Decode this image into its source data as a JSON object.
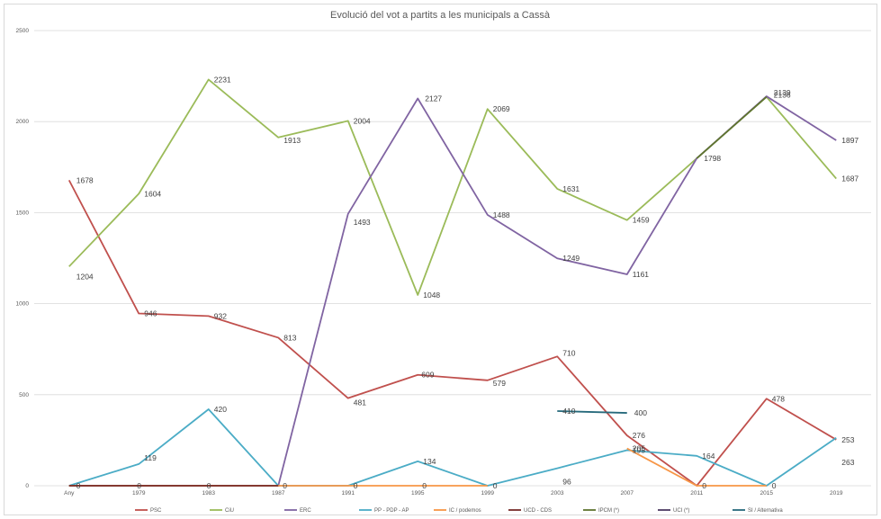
{
  "chart_data": {
    "type": "line",
    "title": "Evolució del vot a partits a les municipals a Cassà",
    "xlabel": "",
    "ylabel": "",
    "categories": [
      "Any",
      "1979",
      "1983",
      "1987",
      "1991",
      "1995",
      "1999",
      "2003",
      "2007",
      "2011",
      "2015",
      "2019"
    ],
    "ylim": [
      0,
      2500
    ],
    "yticks": [
      "0",
      "500",
      "1000",
      "1500",
      "2000",
      "2500"
    ],
    "grid": true,
    "legend_position": "bottom",
    "series": [
      {
        "name": "PSC",
        "color": "#c0504d",
        "values": [
          1678,
          946,
          932,
          813,
          481,
          609,
          579,
          710,
          276,
          0,
          478,
          253
        ]
      },
      {
        "name": "CiU",
        "color": "#9bbb59",
        "values": [
          1204,
          1604,
          2231,
          1913,
          2004,
          1048,
          2069,
          1631,
          1459,
          1798,
          2136,
          1687
        ]
      },
      {
        "name": "ERC",
        "color": "#8064a2",
        "values": [
          0,
          0,
          0,
          0,
          1493,
          2127,
          1488,
          1249,
          1161,
          1798,
          2139,
          1897
        ]
      },
      {
        "name": "PP - PDP - AP",
        "color": "#4bacc6",
        "values": [
          0,
          119,
          420,
          0,
          0,
          134,
          0,
          96,
          195,
          164,
          0,
          263
        ]
      },
      {
        "name": "IC / podemos",
        "color": "#f79646",
        "values": [
          0,
          0,
          0,
          0,
          0,
          0,
          0,
          null,
          205,
          0,
          0,
          null
        ]
      },
      {
        "name": "UCD - CDS",
        "color": "#772c2a",
        "values": [
          0,
          0,
          0,
          0,
          null,
          null,
          null,
          null,
          null,
          null,
          null,
          null
        ]
      },
      {
        "name": "IPCM (*)",
        "color": "#5f7530",
        "values": [
          null,
          null,
          null,
          null,
          null,
          null,
          null,
          null,
          null,
          1798,
          2136,
          null
        ]
      },
      {
        "name": "UCI (*)",
        "color": "#4d3b62",
        "values": [
          null,
          null,
          null,
          null,
          null,
          null,
          null,
          null,
          null,
          null,
          null,
          null
        ]
      },
      {
        "name": "SI / Alternativa",
        "color": "#276a7c",
        "values": [
          null,
          null,
          null,
          null,
          null,
          null,
          null,
          410,
          400,
          null,
          null,
          null
        ]
      }
    ],
    "data_labels": [
      {
        "text": "1678",
        "cat": 0,
        "value": 1678,
        "dx": 8,
        "dy": 3
      },
      {
        "text": "1204",
        "cat": 0,
        "value": 1204,
        "dx": 8,
        "dy": 14
      },
      {
        "text": "0",
        "cat": 0,
        "value": 0,
        "dx": 8,
        "dy": 3
      },
      {
        "text": "946",
        "cat": 1,
        "value": 946,
        "dx": 6,
        "dy": 3
      },
      {
        "text": "1604",
        "cat": 1,
        "value": 1604,
        "dx": 6,
        "dy": 3
      },
      {
        "text": "119",
        "cat": 1,
        "value": 119,
        "dx": 6,
        "dy": -4
      },
      {
        "text": "0",
        "cat": 1,
        "value": 0,
        "dx": -2,
        "dy": 3
      },
      {
        "text": "2231",
        "cat": 2,
        "value": 2231,
        "dx": 6,
        "dy": 3
      },
      {
        "text": "932",
        "cat": 2,
        "value": 932,
        "dx": 6,
        "dy": 3
      },
      {
        "text": "420",
        "cat": 2,
        "value": 420,
        "dx": 6,
        "dy": 3
      },
      {
        "text": "0",
        "cat": 2,
        "value": 0,
        "dx": -2,
        "dy": 3
      },
      {
        "text": "1913",
        "cat": 3,
        "value": 1913,
        "dx": 6,
        "dy": 6
      },
      {
        "text": "813",
        "cat": 3,
        "value": 813,
        "dx": 6,
        "dy": 3
      },
      {
        "text": "0",
        "cat": 3,
        "value": 0,
        "dx": 5,
        "dy": 3
      },
      {
        "text": "2004",
        "cat": 4,
        "value": 2004,
        "dx": 6,
        "dy": 3
      },
      {
        "text": "1493",
        "cat": 4,
        "value": 1493,
        "dx": 6,
        "dy": 12
      },
      {
        "text": "481",
        "cat": 4,
        "value": 481,
        "dx": 6,
        "dy": 8
      },
      {
        "text": "0",
        "cat": 4,
        "value": 0,
        "dx": 6,
        "dy": 3
      },
      {
        "text": "2127",
        "cat": 5,
        "value": 2127,
        "dx": 8,
        "dy": 3
      },
      {
        "text": "1048",
        "cat": 5,
        "value": 1048,
        "dx": 6,
        "dy": 3
      },
      {
        "text": "609",
        "cat": 5,
        "value": 609,
        "dx": 4,
        "dy": 3
      },
      {
        "text": "134",
        "cat": 5,
        "value": 134,
        "dx": 6,
        "dy": 3
      },
      {
        "text": "0",
        "cat": 5,
        "value": 0,
        "dx": 5,
        "dy": 3
      },
      {
        "text": "2069",
        "cat": 6,
        "value": 2069,
        "dx": 6,
        "dy": 3
      },
      {
        "text": "1488",
        "cat": 6,
        "value": 1488,
        "dx": 6,
        "dy": 3
      },
      {
        "text": "579",
        "cat": 6,
        "value": 579,
        "dx": 6,
        "dy": 6
      },
      {
        "text": "0",
        "cat": 6,
        "value": 0,
        "dx": 6,
        "dy": 3
      },
      {
        "text": "1631",
        "cat": 7,
        "value": 1631,
        "dx": 6,
        "dy": 3
      },
      {
        "text": "1249",
        "cat": 7,
        "value": 1249,
        "dx": 6,
        "dy": 3
      },
      {
        "text": "710",
        "cat": 7,
        "value": 710,
        "dx": 6,
        "dy": -1
      },
      {
        "text": "410",
        "cat": 7,
        "value": 410,
        "dx": 6,
        "dy": 3
      },
      {
        "text": "96",
        "cat": 7,
        "value": 96,
        "dx": 6,
        "dy": 18
      },
      {
        "text": "1459",
        "cat": 8,
        "value": 1459,
        "dx": 6,
        "dy": 3
      },
      {
        "text": "1161",
        "cat": 8,
        "value": 1161,
        "dx": 6,
        "dy": 3
      },
      {
        "text": "400",
        "cat": 8,
        "value": 400,
        "dx": 8,
        "dy": 3
      },
      {
        "text": "276",
        "cat": 8,
        "value": 276,
        "dx": 6,
        "dy": 3
      },
      {
        "text": "205",
        "cat": 8,
        "value": 205,
        "dx": 6,
        "dy": 3
      },
      {
        "text": "195",
        "cat": 8,
        "value": 195,
        "dx": 6,
        "dy": 3
      },
      {
        "text": "1798",
        "cat": 9,
        "value": 1798,
        "dx": 8,
        "dy": 3
      },
      {
        "text": "164",
        "cat": 9,
        "value": 164,
        "dx": 6,
        "dy": 3
      },
      {
        "text": "0",
        "cat": 9,
        "value": 0,
        "dx": 6,
        "dy": 3
      },
      {
        "text": "2139",
        "cat": 10,
        "value": 2139,
        "dx": 8,
        "dy": -1
      },
      {
        "text": "2136",
        "cat": 10,
        "value": 2136,
        "dx": 8,
        "dy": 1
      },
      {
        "text": "478",
        "cat": 10,
        "value": 478,
        "dx": 6,
        "dy": 3
      },
      {
        "text": "0",
        "cat": 10,
        "value": 0,
        "dx": 6,
        "dy": 3
      },
      {
        "text": "1897",
        "cat": 11,
        "value": 1897,
        "dx": 6,
        "dy": 3
      },
      {
        "text": "1687",
        "cat": 11,
        "value": 1687,
        "dx": 6,
        "dy": 3
      },
      {
        "text": "253",
        "cat": 11,
        "value": 253,
        "dx": 6,
        "dy": 3
      },
      {
        "text": "263",
        "cat": 11,
        "value": 263,
        "dx": 6,
        "dy": 30
      }
    ]
  }
}
